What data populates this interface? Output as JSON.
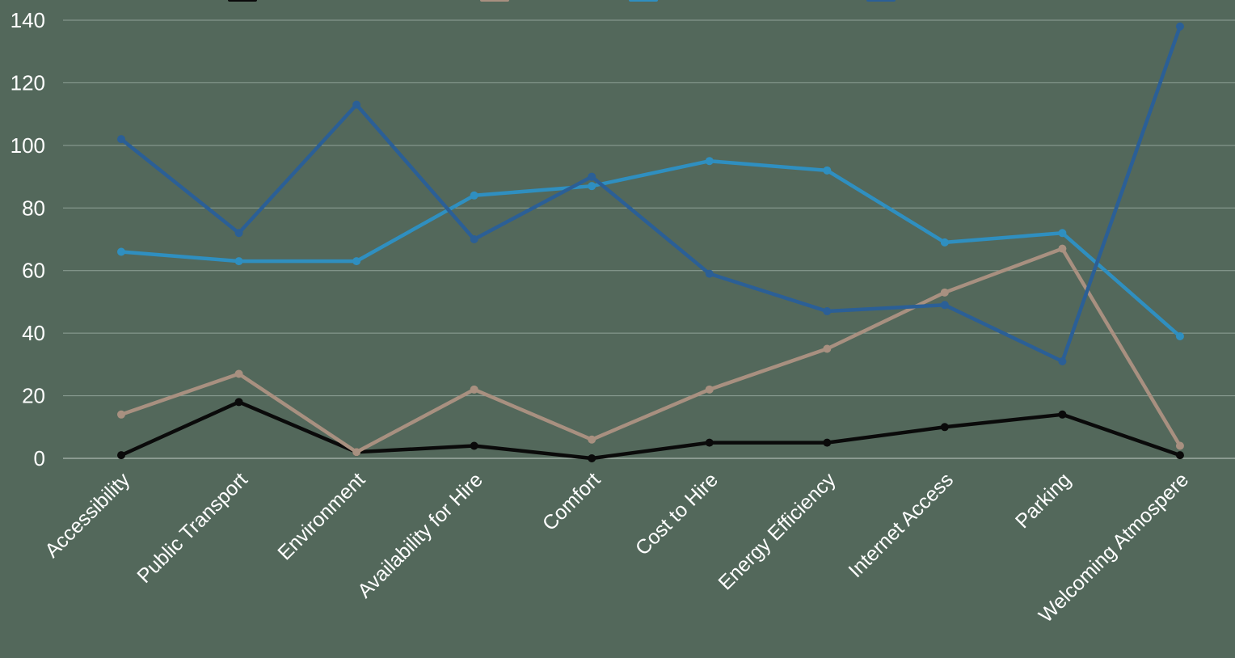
{
  "chart_data": {
    "type": "line",
    "title": "",
    "xlabel": "",
    "ylabel": "",
    "categories": [
      "Accessibility",
      "Public Transport",
      "Environment",
      "Availability for Hire",
      "Comfort",
      "Cost to Hire",
      "Energy Efficiency",
      "Internet Access",
      "Parking",
      "Welcoming Atmospere"
    ],
    "ylim": [
      0,
      140
    ],
    "yticks": [
      0,
      20,
      40,
      60,
      80,
      100,
      120,
      140
    ],
    "grid": true,
    "legend_position": "top",
    "series": [
      {
        "color": "#0a0a0a",
        "values": [
          1,
          18,
          2,
          4,
          0,
          5,
          5,
          10,
          14,
          1
        ]
      },
      {
        "color": "#a89080",
        "values": [
          14,
          27,
          2,
          22,
          6,
          22,
          35,
          53,
          67,
          4
        ]
      },
      {
        "color": "#2f8fc0",
        "values": [
          66,
          63,
          63,
          84,
          87,
          95,
          92,
          69,
          72,
          39
        ]
      },
      {
        "color": "#2b5f96",
        "values": [
          102,
          72,
          113,
          70,
          90,
          59,
          47,
          49,
          31,
          138
        ]
      }
    ]
  }
}
